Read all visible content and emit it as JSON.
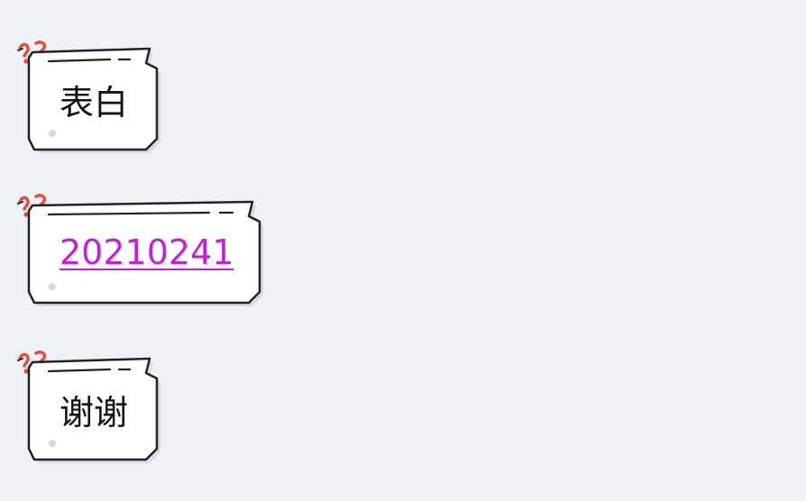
{
  "messages": [
    {
      "text": "表白",
      "kind": "text"
    },
    {
      "text": "20210241",
      "kind": "link"
    },
    {
      "text": "谢谢",
      "kind": "text"
    }
  ],
  "colors": {
    "background": "#eef1f6",
    "bubble_fill": "#ffffff",
    "bubble_shadow": "#d9dbe0",
    "bubble_outline": "#222222",
    "decoration": "#e0503f",
    "link": "#c41fd6",
    "text": "#111111"
  }
}
